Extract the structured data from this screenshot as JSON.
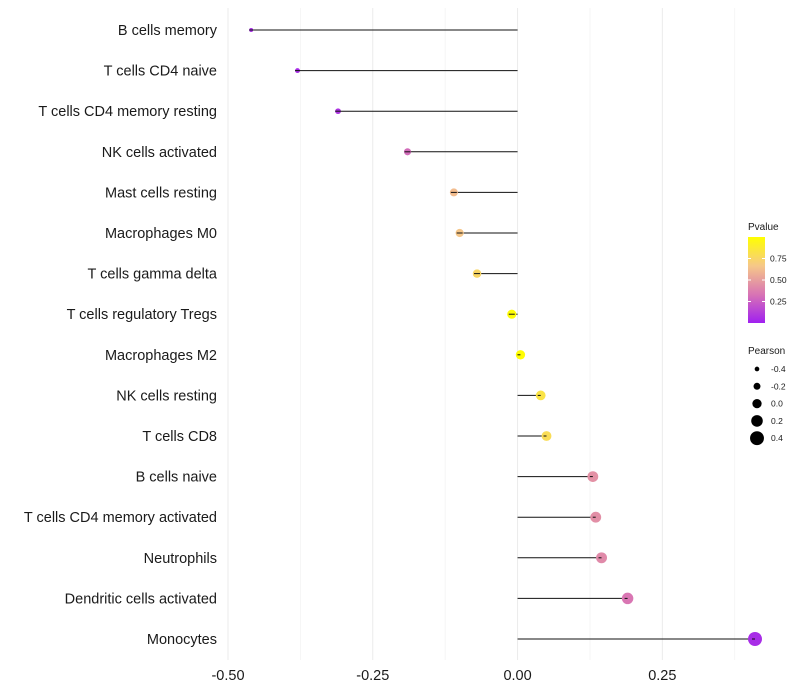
{
  "chart_data": {
    "type": "lollipop",
    "title": "",
    "xlabel": "",
    "ylabel": "",
    "xlim": [
      -0.5,
      0.41
    ],
    "xticks": [
      -0.5,
      -0.25,
      0.0,
      0.25
    ],
    "xtick_labels": [
      "-0.50",
      "-0.25",
      "0.00",
      "0.25"
    ],
    "grid": true,
    "categories": [
      "B cells memory",
      "T cells CD4 naive",
      "T cells CD4 memory resting",
      "NK cells activated",
      "Mast cells resting",
      "Macrophages M0",
      "T cells gamma delta",
      "T cells regulatory  Tregs ",
      "Macrophages M2",
      "NK cells resting",
      "T cells CD8",
      "B cells naive",
      "T cells CD4 memory activated",
      "Neutrophils",
      "Dendritic cells activated",
      "Monocytes"
    ],
    "pearson": [
      -0.46,
      -0.38,
      -0.31,
      -0.19,
      -0.11,
      -0.1,
      -0.07,
      -0.01,
      0.005,
      0.04,
      0.05,
      0.13,
      0.135,
      0.145,
      0.19,
      0.41
    ],
    "pvalue": [
      0.05,
      0.05,
      0.08,
      0.3,
      0.62,
      0.66,
      0.75,
      0.98,
      0.99,
      0.83,
      0.79,
      0.45,
      0.44,
      0.42,
      0.34,
      0.05
    ],
    "legend_color": {
      "title": "Pvalue",
      "ticks": [
        0.25,
        0.5,
        0.75
      ],
      "tick_labels": [
        "0.25",
        "0.50",
        "0.75"
      ],
      "range": [
        0.0,
        1.0
      ],
      "colors": [
        "#a020f0",
        "#d874b4",
        "#f6c888",
        "#ffff00"
      ]
    },
    "legend_size": {
      "title": "Pearson",
      "values": [
        -0.4,
        -0.2,
        0.0,
        0.2,
        0.4
      ],
      "labels": [
        "-0.4",
        "-0.2",
        "0.0",
        "0.2",
        "0.4"
      ]
    }
  }
}
